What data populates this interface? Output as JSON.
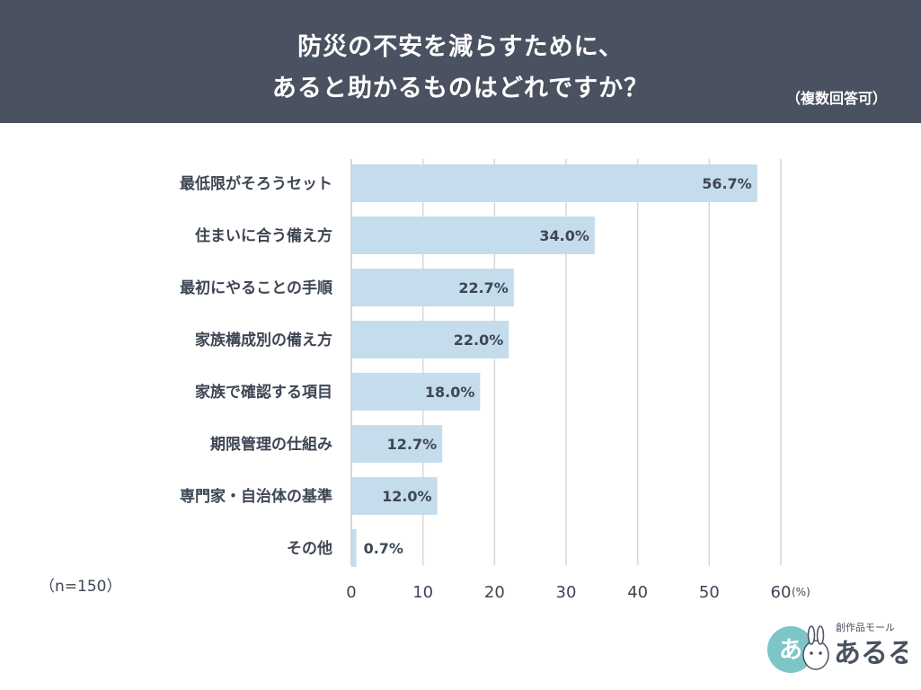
{
  "header": {
    "title_line1": "防災の不安を減らすために、",
    "title_line2": "あると助かるものはどれですか？",
    "subtitle": "（複数回答可）"
  },
  "sample_note": "（n=150）",
  "colors": {
    "header_bg": "#4a5160",
    "bar": "#c5dcec",
    "grid": "#d6d6d6",
    "text": "#3e4654"
  },
  "chart_data": {
    "type": "bar",
    "orientation": "horizontal",
    "categories": [
      "最低限がそろうセット",
      "住まいに合う備え方",
      "最初にやることの手順",
      "家族構成別の備え方",
      "家族で確認する項目",
      "期限管理の仕組み",
      "専門家・自治体の基準",
      "その他"
    ],
    "values": [
      56.7,
      34.0,
      22.7,
      22.0,
      18.0,
      12.7,
      12.0,
      0.7
    ],
    "value_labels": [
      "56.7%",
      "34.0%",
      "22.7%",
      "22.0%",
      "18.0%",
      "12.7%",
      "12.0%",
      "0.7%"
    ],
    "xlim": [
      0,
      60
    ],
    "xticks": [
      0,
      10,
      20,
      30,
      40,
      50,
      60
    ],
    "unit": "(%)",
    "grid": true
  },
  "logo": {
    "caption": "創作品モール",
    "wordmark": "あるる",
    "badge_text": "あ"
  }
}
